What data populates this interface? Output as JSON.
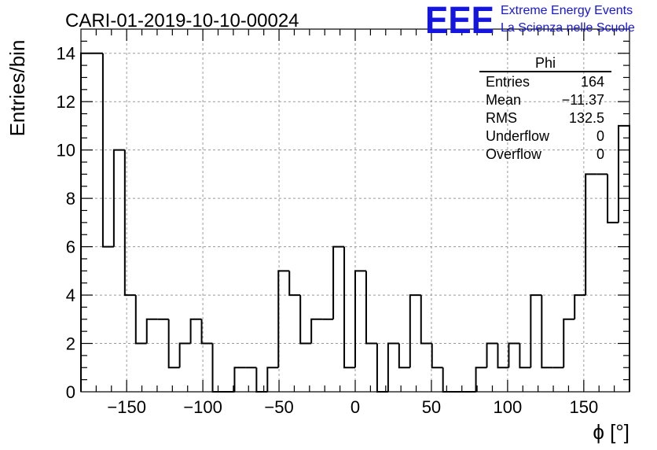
{
  "header": {
    "run_title": "CARI-01-2019-10-10-00024",
    "logo": {
      "mark": "EEE",
      "line1": "Extreme Energy Events",
      "line2": "La Scienza nelle Scuole",
      "color": "#1515e0"
    }
  },
  "stats_box": {
    "title": "Phi",
    "rows": [
      {
        "label": "Entries",
        "value": "164"
      },
      {
        "label": "Mean",
        "value": "−11.37"
      },
      {
        "label": "RMS",
        "value": "132.5"
      },
      {
        "label": "Underflow",
        "value": "0"
      },
      {
        "label": "Overflow",
        "value": "0"
      }
    ]
  },
  "chart_data": {
    "type": "bar",
    "style": "step-histogram",
    "title": "CARI-01-2019-10-10-00024",
    "xlabel": "ϕ [°]",
    "ylabel": "Entries/bin",
    "xlim": [
      -180,
      180
    ],
    "ylim": [
      0,
      15
    ],
    "grid": true,
    "bin_width": 7.2,
    "bin_low_edges": [
      -180,
      -172.8,
      -165.6,
      -158.4,
      -151.2,
      -144,
      -136.8,
      -129.6,
      -122.4,
      -115.2,
      -108,
      -100.8,
      -93.6,
      -86.4,
      -79.2,
      -72,
      -64.8,
      -57.6,
      -50.4,
      -43.2,
      -36,
      -28.8,
      -21.6,
      -14.4,
      -7.2,
      0,
      7.2,
      14.4,
      21.6,
      28.8,
      36,
      43.2,
      50.4,
      57.6,
      64.8,
      72,
      79.2,
      86.4,
      93.6,
      100.8,
      108,
      115.2,
      122.4,
      129.6,
      136.8,
      144,
      151.2,
      158.4,
      165.6,
      172.8
    ],
    "values": [
      14,
      14,
      6,
      10,
      4,
      2,
      3,
      3,
      1,
      2,
      3,
      2,
      0,
      0,
      1,
      1,
      0,
      1,
      5,
      4,
      2,
      3,
      3,
      6,
      1,
      5,
      2,
      0,
      2,
      1,
      4,
      2,
      1,
      0,
      0,
      0,
      1,
      2,
      1,
      2,
      1,
      4,
      1,
      1,
      3,
      4,
      9,
      9,
      7,
      11
    ],
    "x_ticks": [
      -150,
      -100,
      -50,
      0,
      50,
      100,
      150
    ],
    "x_tick_labels": [
      "−150",
      "−100",
      "−50",
      "0",
      "50",
      "100",
      "150"
    ],
    "y_ticks": [
      0,
      2,
      4,
      6,
      8,
      10,
      12,
      14
    ],
    "y_tick_labels": [
      "0",
      "2",
      "4",
      "6",
      "8",
      "10",
      "12",
      "14"
    ],
    "line_color": "#000000",
    "grid_color": "#9a9a9a"
  }
}
